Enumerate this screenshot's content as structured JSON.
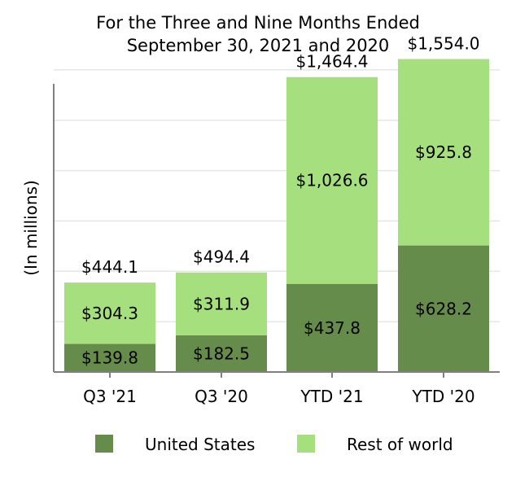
{
  "chart_data": {
    "type": "bar",
    "stacked": true,
    "title": [
      "For the Three and Nine Months Ended",
      "September 30, 2021 and 2020"
    ],
    "ylabel": "(In millions)",
    "xlabel": "",
    "categories": [
      "Q3 '21",
      "Q3 '20",
      "YTD '21",
      "YTD '20"
    ],
    "series": [
      {
        "name": "United States",
        "color": "#668c4c",
        "values": [
          139.8,
          182.5,
          437.8,
          628.2
        ],
        "labels": [
          "$139.8",
          "$182.5",
          "$437.8",
          "$628.2"
        ]
      },
      {
        "name": "Rest of world",
        "color": "#a6e07e",
        "values": [
          304.3,
          311.9,
          1026.6,
          925.8
        ],
        "labels": [
          "$304.3",
          "$311.9",
          "$1,026.6",
          "$925.8"
        ]
      }
    ],
    "totals": [
      444.1,
      494.4,
      1464.4,
      1554.0
    ],
    "total_labels": [
      "$444.1",
      "$494.4",
      "$1,464.4",
      "$1,554.0"
    ],
    "ylim": [
      0,
      1700
    ],
    "gridlines": [
      250,
      500,
      750,
      1000,
      1250,
      1500
    ],
    "grid": true,
    "y_tick_labels": false,
    "legend_position": "bottom"
  }
}
